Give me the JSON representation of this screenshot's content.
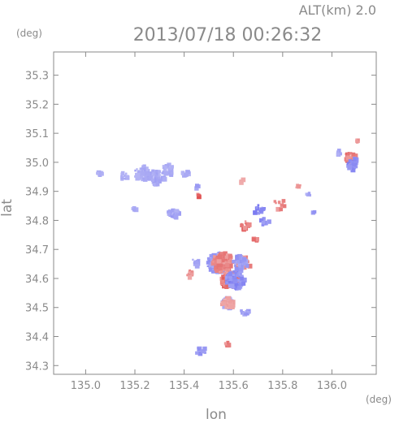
{
  "chart_data": {
    "type": "scatter",
    "title": "2013/07/18 00:26:32",
    "subtitle": "ALT(km) 2.0",
    "xlabel": "lon",
    "ylabel": "lat",
    "xunit": "(deg)",
    "yunit": "(deg)",
    "xlim": [
      134.87,
      136.18
    ],
    "ylim": [
      34.27,
      35.38
    ],
    "xticks": [
      135.0,
      135.2,
      135.4,
      135.6,
      135.8,
      136.0
    ],
    "yticks": [
      34.3,
      34.4,
      34.5,
      34.6,
      34.7,
      34.8,
      34.9,
      35.0,
      35.1,
      35.2,
      35.3
    ],
    "xtick_labels": [
      "135.0",
      "135.2",
      "135.4",
      "135.6",
      "135.8",
      "136.0"
    ],
    "ytick_labels": [
      "34.3",
      "34.4",
      "34.5",
      "34.6",
      "34.7",
      "34.8",
      "34.9",
      "35.0",
      "35.1",
      "35.2",
      "35.3"
    ],
    "grid": false,
    "colors": {
      "positive": "#e05050",
      "negative": "#6a6af0",
      "weak_negative": "#c4c4f6",
      "weak_positive": "#f4c6c6",
      "axis": "#8a8a8a"
    },
    "clusters": [
      {
        "lon": 135.05,
        "lat": 34.97,
        "sign": -1,
        "intensity": 0.3,
        "spread": 0.01,
        "count": 12
      },
      {
        "lon": 135.15,
        "lat": 34.96,
        "sign": -1,
        "intensity": 0.3,
        "spread": 0.015,
        "count": 10
      },
      {
        "lon": 135.22,
        "lat": 34.97,
        "sign": -1,
        "intensity": 0.3,
        "spread": 0.025,
        "count": 40
      },
      {
        "lon": 135.28,
        "lat": 34.96,
        "sign": -1,
        "intensity": 0.35,
        "spread": 0.03,
        "count": 45
      },
      {
        "lon": 135.33,
        "lat": 34.98,
        "sign": -1,
        "intensity": 0.3,
        "spread": 0.02,
        "count": 25
      },
      {
        "lon": 135.4,
        "lat": 34.97,
        "sign": -1,
        "intensity": 0.3,
        "spread": 0.012,
        "count": 10
      },
      {
        "lon": 135.19,
        "lat": 34.85,
        "sign": -1,
        "intensity": 0.35,
        "spread": 0.008,
        "count": 5
      },
      {
        "lon": 135.35,
        "lat": 34.83,
        "sign": -1,
        "intensity": 0.4,
        "spread": 0.018,
        "count": 25
      },
      {
        "lon": 135.45,
        "lat": 34.89,
        "sign": 1,
        "intensity": 0.9,
        "spread": 0.006,
        "count": 6
      },
      {
        "lon": 135.45,
        "lat": 34.92,
        "sign": -1,
        "intensity": 0.4,
        "spread": 0.008,
        "count": 5
      },
      {
        "lon": 135.63,
        "lat": 34.94,
        "sign": 1,
        "intensity": 0.25,
        "spread": 0.008,
        "count": 5
      },
      {
        "lon": 135.7,
        "lat": 34.84,
        "sign": -1,
        "intensity": 0.7,
        "spread": 0.02,
        "count": 14
      },
      {
        "lon": 135.78,
        "lat": 34.86,
        "sign": 1,
        "intensity": 0.6,
        "spread": 0.02,
        "count": 12
      },
      {
        "lon": 135.64,
        "lat": 34.79,
        "sign": 1,
        "intensity": 0.8,
        "spread": 0.015,
        "count": 14
      },
      {
        "lon": 135.72,
        "lat": 34.8,
        "sign": -1,
        "intensity": 0.6,
        "spread": 0.015,
        "count": 10
      },
      {
        "lon": 135.68,
        "lat": 34.74,
        "sign": 1,
        "intensity": 0.8,
        "spread": 0.008,
        "count": 5
      },
      {
        "lon": 135.53,
        "lat": 34.66,
        "sign": -1,
        "intensity": 0.5,
        "spread": 0.035,
        "count": 120
      },
      {
        "lon": 135.55,
        "lat": 34.66,
        "sign": 1,
        "intensity": 0.6,
        "spread": 0.035,
        "count": 120
      },
      {
        "lon": 135.58,
        "lat": 34.6,
        "sign": 1,
        "intensity": 0.75,
        "spread": 0.03,
        "count": 100
      },
      {
        "lon": 135.6,
        "lat": 34.6,
        "sign": -1,
        "intensity": 0.7,
        "spread": 0.03,
        "count": 80
      },
      {
        "lon": 135.63,
        "lat": 34.66,
        "sign": 1,
        "intensity": 0.6,
        "spread": 0.025,
        "count": 50
      },
      {
        "lon": 135.62,
        "lat": 34.66,
        "sign": -1,
        "intensity": 0.5,
        "spread": 0.025,
        "count": 40
      },
      {
        "lon": 135.57,
        "lat": 34.52,
        "sign": -1,
        "intensity": 0.4,
        "spread": 0.02,
        "count": 50
      },
      {
        "lon": 135.57,
        "lat": 34.52,
        "sign": 1,
        "intensity": 0.35,
        "spread": 0.02,
        "count": 40
      },
      {
        "lon": 135.64,
        "lat": 34.49,
        "sign": -1,
        "intensity": 0.5,
        "spread": 0.012,
        "count": 14
      },
      {
        "lon": 135.57,
        "lat": 34.38,
        "sign": 1,
        "intensity": 0.7,
        "spread": 0.008,
        "count": 8
      },
      {
        "lon": 135.46,
        "lat": 34.36,
        "sign": -1,
        "intensity": 0.5,
        "spread": 0.02,
        "count": 8
      },
      {
        "lon": 135.42,
        "lat": 34.62,
        "sign": 1,
        "intensity": 0.5,
        "spread": 0.012,
        "count": 10
      },
      {
        "lon": 135.44,
        "lat": 34.66,
        "sign": -1,
        "intensity": 0.4,
        "spread": 0.012,
        "count": 10
      },
      {
        "lon": 135.9,
        "lat": 34.9,
        "sign": -1,
        "intensity": 0.35,
        "spread": 0.01,
        "count": 6
      },
      {
        "lon": 135.92,
        "lat": 34.83,
        "sign": -1,
        "intensity": 0.5,
        "spread": 0.006,
        "count": 4
      },
      {
        "lon": 135.86,
        "lat": 34.92,
        "sign": 1,
        "intensity": 0.5,
        "spread": 0.008,
        "count": 5
      },
      {
        "lon": 136.07,
        "lat": 35.02,
        "sign": 1,
        "intensity": 0.7,
        "spread": 0.02,
        "count": 25
      },
      {
        "lon": 136.08,
        "lat": 35.0,
        "sign": -1,
        "intensity": 0.7,
        "spread": 0.02,
        "count": 25
      },
      {
        "lon": 136.02,
        "lat": 35.04,
        "sign": -1,
        "intensity": 0.4,
        "spread": 0.01,
        "count": 6
      },
      {
        "lon": 136.1,
        "lat": 35.08,
        "sign": 1,
        "intensity": 0.5,
        "spread": 0.008,
        "count": 5
      }
    ]
  }
}
